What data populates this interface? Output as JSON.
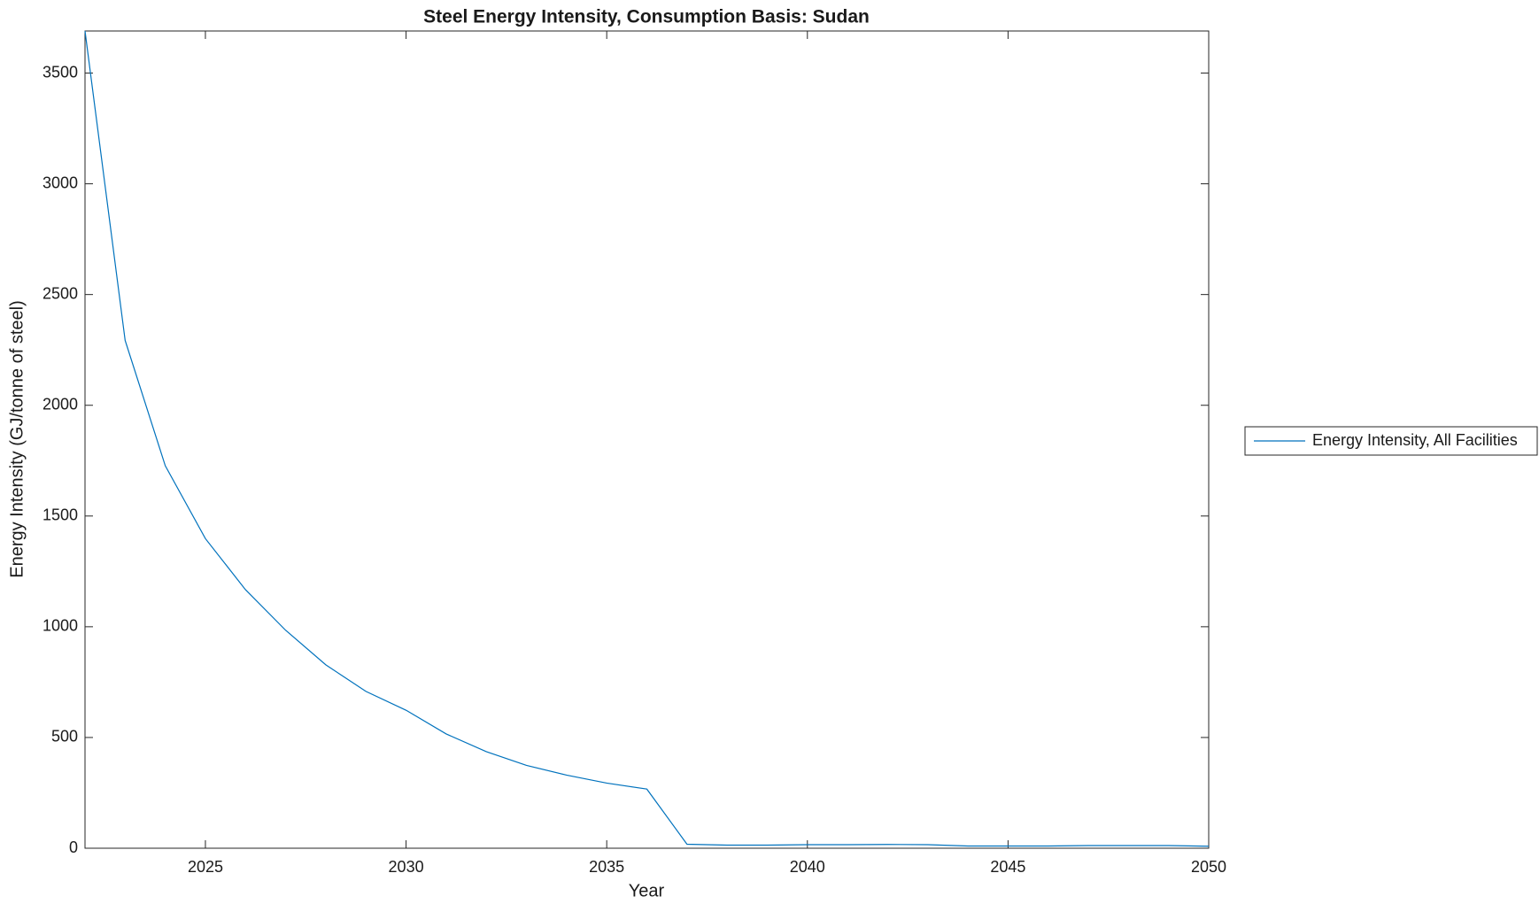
{
  "chart_data": {
    "type": "line",
    "title": "Steel Energy Intensity, Consumption Basis: Sudan",
    "x_label": "Year",
    "y_label": "Energy Intensity (GJ/tonne of steel)",
    "x": [
      2022,
      2023,
      2024,
      2025,
      2026,
      2027,
      2028,
      2029,
      2030,
      2031,
      2032,
      2033,
      2034,
      2035,
      2036,
      2037,
      2038,
      2039,
      2040,
      2041,
      2042,
      2043,
      2044,
      2045,
      2046,
      2047,
      2048,
      2049,
      2050
    ],
    "series": [
      {
        "name": "Energy Intensity, All Facilities",
        "color": "#0072bd",
        "values": [
          3690,
          2293,
          1727,
          1398,
          1167,
          984,
          828,
          708,
          623,
          516,
          436,
          374,
          330,
          294,
          267,
          18,
          14,
          14,
          16,
          16,
          17,
          16,
          10,
          10,
          10,
          12,
          12,
          12,
          9
        ]
      }
    ],
    "xlim": [
      2022,
      2050
    ],
    "xticks": [
      2025,
      2030,
      2035,
      2040,
      2045,
      2050
    ],
    "ylim": [
      0,
      3690
    ],
    "yticks": [
      0,
      500,
      1000,
      1500,
      2000,
      2500,
      3000,
      3500
    ],
    "grid": false,
    "legend": "outside-right"
  }
}
